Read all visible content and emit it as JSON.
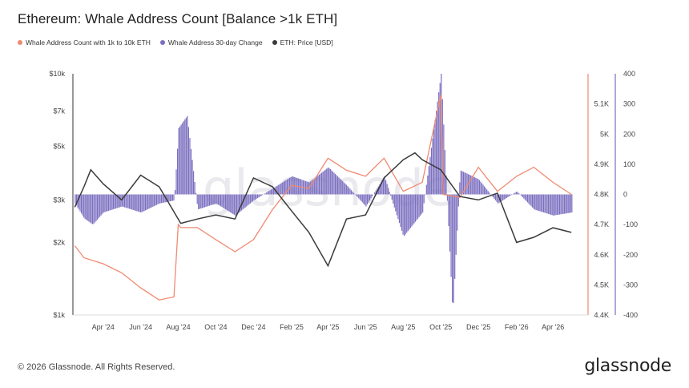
{
  "header": {
    "title": "Ethereum: Whale Address Count [Balance >1k ETH]"
  },
  "legend": [
    {
      "label": "Whale Address Count with 1k to 10k ETH",
      "color": "#f08a72"
    },
    {
      "label": "Whale Address 30-day Change",
      "color": "#7b6fc0"
    },
    {
      "label": "ETH: Price [USD]",
      "color": "#3a3a3a"
    }
  ],
  "footer": {
    "copyright": "© 2026 Glassnode. All Rights Reserved.",
    "brand": "glassnode",
    "watermark": "glassnode"
  },
  "chart_data": {
    "type": "line",
    "x_labels": [
      "Apr '24",
      "Jun '24",
      "Aug '24",
      "Oct '24",
      "Dec '24",
      "Feb '25",
      "Apr '25",
      "Jun '25",
      "Aug '25",
      "Oct '25",
      "Dec '25",
      "Feb '26",
      "Apr '26"
    ],
    "y_left_ticks": [
      "$10k",
      "$7k",
      "$5k",
      "$3k",
      "$2k",
      "$1k"
    ],
    "y_left_scale": "log",
    "y_left_range": [
      1000,
      10000
    ],
    "y_mid_ticks": [
      "5.1K",
      "5K",
      "4.9K",
      "4.8K",
      "4.7K",
      "4.6K",
      "4.5K",
      "4.4K"
    ],
    "y_mid_range": [
      4400,
      5200
    ],
    "y_right_ticks": [
      "400",
      "300",
      "200",
      "100",
      "0",
      "-100",
      "-200",
      "-300",
      "-400"
    ],
    "y_right_range": [
      -400,
      400
    ],
    "grid": false,
    "legend_position": "top-left",
    "series": [
      {
        "name": "Whale Address Count with 1k to 10k ETH",
        "axis": "mid",
        "color": "#f08a72",
        "points": [
          [
            "2024-02-15",
            4630
          ],
          [
            "2024-03-01",
            4590
          ],
          [
            "2024-04-01",
            4570
          ],
          [
            "2024-05-01",
            4540
          ],
          [
            "2024-06-01",
            4490
          ],
          [
            "2024-07-01",
            4450
          ],
          [
            "2024-07-25",
            4460
          ],
          [
            "2024-08-01",
            4700
          ],
          [
            "2024-08-05",
            4690
          ],
          [
            "2024-09-01",
            4690
          ],
          [
            "2024-10-01",
            4650
          ],
          [
            "2024-11-01",
            4610
          ],
          [
            "2024-12-01",
            4650
          ],
          [
            "2025-01-01",
            4750
          ],
          [
            "2025-02-01",
            4830
          ],
          [
            "2025-03-01",
            4820
          ],
          [
            "2025-04-01",
            4920
          ],
          [
            "2025-05-01",
            4880
          ],
          [
            "2025-06-01",
            4860
          ],
          [
            "2025-07-01",
            4920
          ],
          [
            "2025-08-01",
            4810
          ],
          [
            "2025-09-01",
            4840
          ],
          [
            "2025-10-01",
            5130
          ],
          [
            "2025-10-05",
            4800
          ],
          [
            "2025-11-01",
            4790
          ],
          [
            "2025-12-01",
            4890
          ],
          [
            "2026-01-01",
            4810
          ],
          [
            "2026-02-01",
            4860
          ],
          [
            "2026-03-01",
            4890
          ],
          [
            "2026-04-01",
            4840
          ],
          [
            "2026-05-01",
            4800
          ]
        ]
      },
      {
        "name": "Whale Address 30-day Change",
        "axis": "right",
        "color": "#7b6fc0",
        "points": [
          [
            "2024-02-15",
            -30
          ],
          [
            "2024-03-01",
            -80
          ],
          [
            "2024-03-15",
            -100
          ],
          [
            "2024-04-01",
            -60
          ],
          [
            "2024-05-01",
            -40
          ],
          [
            "2024-06-01",
            -60
          ],
          [
            "2024-07-01",
            -30
          ],
          [
            "2024-07-25",
            -20
          ],
          [
            "2024-08-01",
            220
          ],
          [
            "2024-08-15",
            260
          ],
          [
            "2024-09-01",
            -50
          ],
          [
            "2024-10-01",
            -30
          ],
          [
            "2024-11-01",
            -70
          ],
          [
            "2024-12-01",
            -20
          ],
          [
            "2025-01-01",
            20
          ],
          [
            "2025-02-01",
            60
          ],
          [
            "2025-03-01",
            40
          ],
          [
            "2025-04-01",
            90
          ],
          [
            "2025-05-01",
            30
          ],
          [
            "2025-06-01",
            -40
          ],
          [
            "2025-07-01",
            60
          ],
          [
            "2025-08-01",
            -140
          ],
          [
            "2025-09-01",
            -60
          ],
          [
            "2025-10-01",
            400
          ],
          [
            "2025-10-20",
            -400
          ],
          [
            "2025-11-01",
            80
          ],
          [
            "2025-12-01",
            50
          ],
          [
            "2026-01-01",
            -30
          ],
          [
            "2026-02-01",
            10
          ],
          [
            "2026-03-01",
            -50
          ],
          [
            "2026-04-01",
            -70
          ],
          [
            "2026-05-01",
            -60
          ]
        ]
      },
      {
        "name": "ETH: Price [USD]",
        "axis": "left",
        "color": "#3a3a3a",
        "points": [
          [
            "2024-02-15",
            2800
          ],
          [
            "2024-03-01",
            3400
          ],
          [
            "2024-03-12",
            4000
          ],
          [
            "2024-04-01",
            3500
          ],
          [
            "2024-05-01",
            3000
          ],
          [
            "2024-06-01",
            3800
          ],
          [
            "2024-07-01",
            3400
          ],
          [
            "2024-08-05",
            2400
          ],
          [
            "2024-09-01",
            2500
          ],
          [
            "2024-10-01",
            2600
          ],
          [
            "2024-11-01",
            2500
          ],
          [
            "2024-12-01",
            3700
          ],
          [
            "2025-01-01",
            3400
          ],
          [
            "2025-02-01",
            2700
          ],
          [
            "2025-03-01",
            2200
          ],
          [
            "2025-04-01",
            1600
          ],
          [
            "2025-05-01",
            2500
          ],
          [
            "2025-06-01",
            2600
          ],
          [
            "2025-07-01",
            3700
          ],
          [
            "2025-08-01",
            4400
          ],
          [
            "2025-08-20",
            4700
          ],
          [
            "2025-09-01",
            4400
          ],
          [
            "2025-10-01",
            4000
          ],
          [
            "2025-11-01",
            3100
          ],
          [
            "2025-12-01",
            3000
          ],
          [
            "2026-01-01",
            3200
          ],
          [
            "2026-02-01",
            2000
          ],
          [
            "2026-03-01",
            2100
          ],
          [
            "2026-04-01",
            2300
          ],
          [
            "2026-05-01",
            2200
          ]
        ]
      }
    ]
  }
}
